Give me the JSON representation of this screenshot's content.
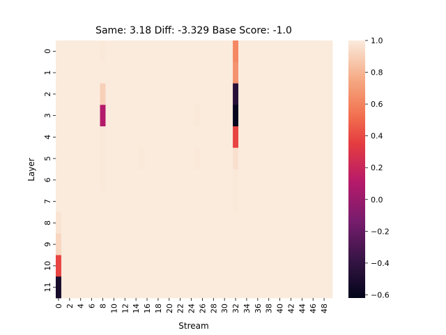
{
  "chart_data": {
    "type": "heatmap",
    "title": "Same: 3.18 Diff: -3.329 Base Score: -1.0",
    "xlabel": "Stream",
    "ylabel": "Layer",
    "x_ticks": [
      "0",
      "2",
      "4",
      "6",
      "8",
      "10",
      "12",
      "14",
      "16",
      "18",
      "20",
      "22",
      "24",
      "26",
      "28",
      "30",
      "32",
      "34",
      "36",
      "38",
      "40",
      "42",
      "44",
      "46",
      "48"
    ],
    "y_ticks": [
      "0",
      "1",
      "2",
      "3",
      "4",
      "5",
      "6",
      "7",
      "8",
      "9",
      "10",
      "11"
    ],
    "n_rows": 12,
    "n_cols": 50,
    "default_value": 1.0,
    "vmin": -0.62,
    "vmax": 1.0,
    "colorbar_ticks": [
      "1.0",
      "0.8",
      "0.6",
      "0.4",
      "0.2",
      "0.0",
      "−0.2",
      "−0.4",
      "−0.6"
    ],
    "colorbar_tick_values": [
      1.0,
      0.8,
      0.6,
      0.4,
      0.2,
      0.0,
      -0.2,
      -0.4,
      -0.6
    ],
    "cells": [
      {
        "row": 0,
        "col": 32,
        "value": 0.62
      },
      {
        "row": 1,
        "col": 32,
        "value": 0.66
      },
      {
        "row": 2,
        "col": 32,
        "value": -0.45
      },
      {
        "row": 3,
        "col": 32,
        "value": -0.6
      },
      {
        "row": 4,
        "col": 32,
        "value": 0.38
      },
      {
        "row": 5,
        "col": 32,
        "value": 0.96
      },
      {
        "row": 2,
        "col": 8,
        "value": 0.9
      },
      {
        "row": 3,
        "col": 8,
        "value": 0.1
      },
      {
        "row": 0,
        "col": 8,
        "value": 0.99
      },
      {
        "row": 4,
        "col": 8,
        "value": 0.99
      },
      {
        "row": 5,
        "col": 8,
        "value": 0.99
      },
      {
        "row": 6,
        "col": 8,
        "value": 0.99
      },
      {
        "row": 3,
        "col": 25,
        "value": 0.99
      },
      {
        "row": 5,
        "col": 25,
        "value": 0.99
      },
      {
        "row": 5,
        "col": 15,
        "value": 0.99
      },
      {
        "row": 6,
        "col": 32,
        "value": 0.99
      },
      {
        "row": 7,
        "col": 32,
        "value": 0.99
      },
      {
        "row": 8,
        "col": 0,
        "value": 0.97
      },
      {
        "row": 9,
        "col": 0,
        "value": 0.92
      },
      {
        "row": 10,
        "col": 0,
        "value": 0.38
      },
      {
        "row": 11,
        "col": 0,
        "value": -0.52
      }
    ]
  }
}
